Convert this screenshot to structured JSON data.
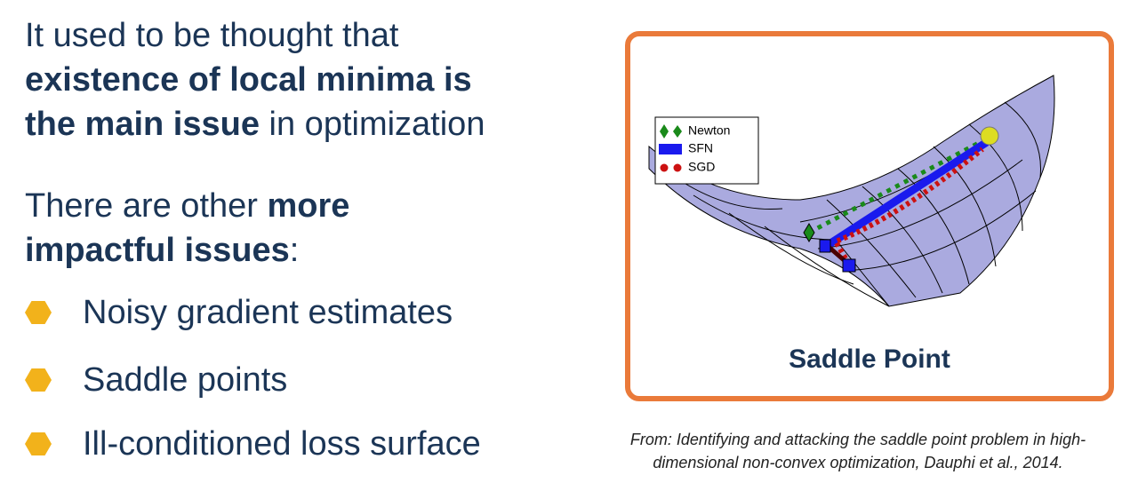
{
  "intro": {
    "runs": [
      "It used to be thought that",
      "existence of local minima is",
      "the main issue",
      "in optimization"
    ]
  },
  "second": {
    "runs": [
      "There are other",
      "more",
      "impactful issues",
      ":"
    ]
  },
  "bullets": [
    "Noisy gradient estimates",
    "Saddle points",
    "Ill-conditioned loss surface"
  ],
  "figure": {
    "legend": [
      "Newton",
      "SFN",
      "SGD"
    ],
    "caption": "Saddle Point"
  },
  "citation": {
    "lines": [
      "From: Identifying and attacking the saddle point problem in high-",
      "dimensional non-convex optimization, Dauphi et al., 2014."
    ]
  }
}
